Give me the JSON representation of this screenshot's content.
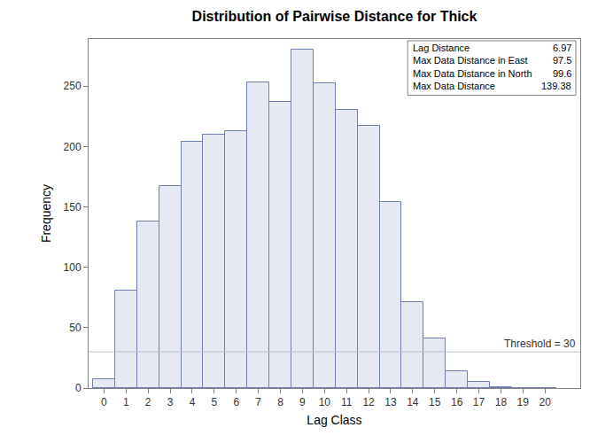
{
  "chart_data": {
    "type": "bar",
    "title": "Distribution of Pairwise Distance for Thick",
    "x_label": "Lag Class",
    "y_label": "Frequency",
    "x": [
      0,
      1,
      2,
      3,
      4,
      5,
      6,
      7,
      8,
      9,
      10,
      11,
      12,
      13,
      14,
      15,
      16,
      17,
      18,
      19,
      20
    ],
    "values": [
      7,
      81,
      138,
      167,
      204,
      210,
      213,
      253,
      237,
      280,
      252,
      230,
      217,
      154,
      71,
      41,
      14,
      5,
      1,
      0,
      0
    ],
    "color": "#e6e9f4",
    "xlim": [
      -0.7,
      21.6
    ],
    "xticks": [
      0,
      1,
      2,
      3,
      4,
      5,
      6,
      7,
      8,
      9,
      10,
      11,
      12,
      13,
      14,
      15,
      16,
      17,
      18,
      19,
      20
    ],
    "ylim": [
      0,
      289
    ],
    "yticks": [
      0,
      50,
      100,
      150,
      200,
      250
    ],
    "grid": false,
    "threshold": {
      "value": 30,
      "label": "Threshold = 30"
    },
    "annotations": [
      {
        "text": "Lag Distance",
        "value": 6.97
      },
      {
        "text": "Max Data Distance in East",
        "value": 97.5
      },
      {
        "text": "Max Data Distance in North",
        "value": 99.6
      },
      {
        "text": "Max Data Distance",
        "value": 139.38
      }
    ]
  }
}
